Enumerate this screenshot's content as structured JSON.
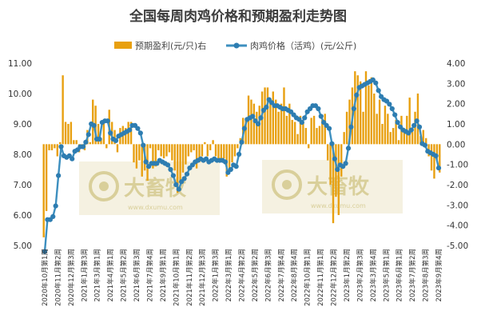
{
  "chart_data": {
    "type": "bar+line",
    "title": "全国每周肉鸡价格和预期盈利走势图",
    "legend": {
      "bar_label": "预期盈利(元/只)右",
      "line_label": "肉鸡价格（活鸡）(元/公斤)",
      "placement": "top"
    },
    "colors": {
      "bar": "#e8a010",
      "line": "#3d8fbf",
      "marker": "#2e7db1"
    },
    "left_axis": {
      "ticks": [
        "5.00",
        "6.00",
        "7.00",
        "8.00",
        "9.00",
        "10.00",
        "11.00"
      ],
      "min": 5,
      "max": 11
    },
    "right_axis": {
      "ticks": [
        "-5.00",
        "-4.00",
        "-3.00",
        "-2.00",
        "-1.00",
        "0.00",
        "1.00",
        "2.00",
        "3.00",
        "4.00"
      ],
      "min": -5,
      "max": 4
    },
    "x_tick_labels": [
      "2020年10月第1周",
      "2020年11月第2周",
      "2020年12月第3周",
      "2021年1月第3周",
      "2021年3月第1周",
      "2021年4月第1周",
      "2021年5月第2周",
      "2021年6月第3周",
      "2021年7月第4周",
      "2021年9月第1周",
      "2021年10月第1周",
      "2021年11月第2周",
      "2021年12月第3周",
      "2022年1月第3周",
      "2022年3月第1周",
      "2022年4月第2周",
      "2022年5月第2周",
      "2022年6月第3周",
      "2022年7月第4周",
      "2022年8月第4周",
      "2022年10月第1周",
      "2022年11月第1周",
      "2022年12月第2周",
      "2023年1月第2周",
      "2023年2月第3周",
      "2023年3月第4周",
      "2023年5月第1周",
      "2023年6月第1周",
      "2023年7月第2周",
      "2023年8月第3周",
      "2023年9月第4周"
    ],
    "price_series": [
      4.8,
      5.85,
      5.85,
      5.95,
      6.3,
      7.3,
      8.25,
      7.95,
      7.9,
      7.95,
      7.85,
      8.1,
      8.15,
      8.25,
      8.25,
      8.4,
      8.65,
      9.0,
      8.95,
      8.5,
      8.5,
      9.05,
      9.1,
      9.1,
      8.7,
      8.5,
      8.45,
      8.6,
      8.65,
      8.7,
      8.75,
      8.8,
      8.95,
      8.95,
      8.85,
      8.7,
      8.3,
      7.75,
      7.6,
      7.7,
      7.7,
      7.7,
      7.8,
      7.75,
      7.7,
      7.65,
      7.5,
      7.3,
      7.0,
      6.85,
      7.1,
      7.2,
      7.35,
      7.55,
      7.65,
      7.75,
      7.8,
      7.85,
      7.8,
      7.85,
      7.75,
      7.8,
      7.85,
      7.8,
      7.8,
      7.8,
      7.75,
      7.4,
      7.5,
      7.65,
      7.6,
      8.0,
      8.4,
      8.85,
      9.15,
      9.2,
      9.25,
      9.1,
      9.0,
      9.2,
      9.45,
      9.55,
      9.8,
      9.7,
      9.6,
      9.6,
      9.55,
      9.5,
      9.5,
      9.45,
      9.4,
      9.3,
      9.2,
      9.15,
      9.05,
      9.2,
      9.4,
      9.5,
      9.6,
      9.6,
      9.5,
      9.25,
      9.05,
      8.95,
      8.85,
      8.35,
      7.85,
      7.5,
      7.65,
      7.6,
      7.7,
      8.2,
      8.9,
      9.5,
      9.95,
      10.2,
      10.25,
      10.3,
      10.35,
      10.4,
      10.45,
      10.35,
      10.1,
      9.9,
      9.8,
      9.75,
      9.65,
      9.5,
      9.3,
      9.05,
      8.9,
      8.8,
      8.75,
      8.7,
      8.8,
      8.95,
      9.1,
      8.9,
      8.35,
      8.3,
      8.1,
      8.05,
      8.0,
      7.95,
      7.55
    ],
    "profit_series": [
      -4.6,
      -3.3,
      -0.3,
      -0.3,
      -0.2,
      -0.6,
      0.1,
      3.4,
      1.1,
      1.0,
      1.1,
      0.2,
      0.2,
      -0.4,
      -0.2,
      -0.3,
      0.7,
      0.1,
      2.2,
      1.9,
      1.0,
      0.3,
      1.2,
      -0.2,
      1.7,
      1.1,
      0.7,
      -0.4,
      0.8,
      0.9,
      0.8,
      1.1,
      1.1,
      -0.9,
      -1.2,
      -0.8,
      -1.6,
      -1.3,
      -1.8,
      -0.2,
      -1.2,
      -1.1,
      -0.3,
      -0.6,
      -0.7,
      -0.6,
      -0.4,
      -0.8,
      -1.3,
      -2.4,
      -1.9,
      -1.4,
      -1.0,
      -0.6,
      -0.4,
      -0.3,
      -1.2,
      -0.9,
      -0.6,
      0.1,
      -0.6,
      -0.3,
      0.2,
      -0.6,
      -0.8,
      -0.7,
      -0.7,
      -1.6,
      -1.2,
      -0.9,
      -0.6,
      -0.2,
      0.3,
      1.3,
      1.2,
      2.4,
      2.2,
      2.0,
      1.6,
      1.9,
      2.6,
      2.8,
      2.8,
      2.2,
      2.6,
      2.2,
      1.6,
      2.0,
      2.8,
      1.4,
      2.0,
      1.2,
      1.1,
      0.5,
      1.4,
      1.1,
      0.8,
      -0.2,
      1.3,
      1.4,
      0.8,
      0.9,
      1.2,
      1.5,
      -0.8,
      -2.0,
      -3.9,
      -2.6,
      -3.5,
      -1.6,
      0.6,
      1.6,
      2.2,
      2.8,
      3.6,
      3.4,
      3.1,
      1.6,
      3.6,
      2.9,
      3.3,
      2.5,
      1.5,
      2.2,
      1.0,
      1.9,
      1.5,
      0.6,
      0.8,
      1.2,
      0.2,
      1.4,
      0.6,
      1.4,
      2.3,
      0.6,
      1.6,
      2.5,
      0.4,
      0.7,
      0.3,
      -0.6,
      -1.3,
      -1.7,
      -0.8,
      -1.4
    ]
  }
}
